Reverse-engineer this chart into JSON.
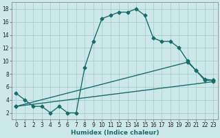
{
  "title": "",
  "xlabel": "Humidex (Indice chaleur)",
  "bg_color": "#cce8e8",
  "grid_color": "#aacece",
  "line_color": "#1a6b6b",
  "spine_color": "#888888",
  "xlim": [
    -0.5,
    23.5
  ],
  "ylim": [
    1,
    19
  ],
  "xticks": [
    0,
    1,
    2,
    3,
    4,
    5,
    6,
    7,
    8,
    9,
    10,
    11,
    12,
    13,
    14,
    15,
    16,
    17,
    18,
    19,
    20,
    21,
    22,
    23
  ],
  "yticks": [
    2,
    4,
    6,
    8,
    10,
    12,
    14,
    16,
    18
  ],
  "curve1_x": [
    0,
    1,
    2,
    3,
    4,
    5,
    6,
    7,
    8,
    9,
    10,
    11,
    12,
    13,
    14,
    15,
    16,
    17,
    18,
    19,
    20,
    21,
    22,
    23
  ],
  "curve1_y": [
    5,
    4,
    3,
    3,
    2,
    3,
    2,
    2,
    9,
    13,
    16.5,
    17,
    17.5,
    17.5,
    18,
    17,
    13.5,
    13,
    13,
    12,
    10,
    8.5,
    7,
    7
  ],
  "curve2_x": [
    0,
    20,
    21,
    22,
    23
  ],
  "curve2_y": [
    3,
    9.8,
    8.5,
    7.2,
    7.0
  ],
  "curve3_x": [
    0,
    23
  ],
  "curve3_y": [
    3,
    6.8
  ],
  "marker": "D",
  "markersize": 2.5,
  "linewidth": 1.0,
  "tick_fontsize": 5.5,
  "xlabel_fontsize": 6.5
}
